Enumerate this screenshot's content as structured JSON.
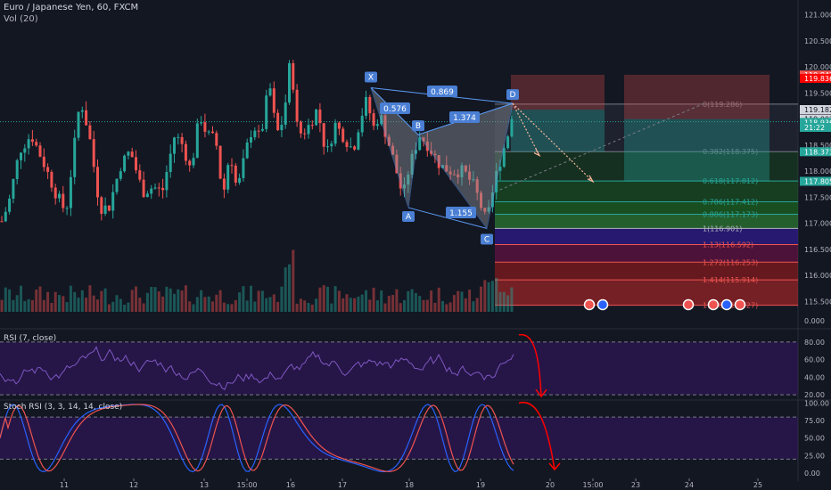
{
  "header": {
    "symbol_title": "Euro / Japanese Yen, 60, FXCM",
    "volume_label": "Vol (20)"
  },
  "rsi_panel": {
    "title": "RSI (7, close)"
  },
  "stoch_panel": {
    "title": "Stoch RSI (3, 3, 14, 14, close)"
  },
  "colors": {
    "background": "#131722",
    "up": "#26a69a",
    "down": "#ef5350",
    "pattern_fill": "#8a8f99",
    "pattern_line": "#5b9cf6",
    "rsi_line": "#7e57c2",
    "stoch_k": "#2962ff",
    "stoch_d": "#ef5350",
    "annotation_red": "#ff0000"
  },
  "chart_data": [
    {
      "type": "candlestick",
      "title": "Euro / Japanese Yen, 60, FXCM",
      "x_tick_labels": [
        "11",
        "12",
        "13",
        "15:00",
        "16",
        "17",
        "18",
        "19",
        "20",
        "15:00",
        "23",
        "24",
        "25"
      ],
      "y_tick_labels": [
        "121.000",
        "120.500",
        "120.000",
        "119.500",
        "119.000",
        "118.500",
        "118.000",
        "117.500",
        "117.000",
        "116.500",
        "116.000",
        "115.500"
      ],
      "ylim": [
        115.3,
        121.2
      ],
      "price_labels": [
        {
          "text": "119.847",
          "color": "#ef5350"
        },
        {
          "text": "119.836",
          "color": "#ff0000"
        },
        {
          "text": "119.182",
          "color": "#131722"
        },
        {
          "text": "119.002",
          "color": "#131722"
        },
        {
          "text": "118.936",
          "color": "#26a69a"
        },
        {
          "text": "21:22",
          "color": "#26a69a"
        },
        {
          "text": "118.373",
          "color": "#26a69a"
        },
        {
          "text": "117.805",
          "color": "#26a69a"
        }
      ],
      "harmonic_pattern": {
        "points": [
          {
            "label": "X",
            "price": 119.6
          },
          {
            "label": "A",
            "price": 117.3
          },
          {
            "label": "B",
            "price": 118.7
          },
          {
            "label": "C",
            "price": 116.9
          },
          {
            "label": "D",
            "price": 119.3
          }
        ],
        "ratios": [
          "0.869",
          "0.576",
          "1.374",
          "1.155"
        ]
      },
      "fib_levels": [
        {
          "ratio": 0,
          "price": 119.286,
          "label": "0(119.286)"
        },
        {
          "ratio": 0.382,
          "price": 118.375,
          "label": "0.382(118.375)"
        },
        {
          "ratio": 0.618,
          "price": 117.812,
          "label": "0.618(117.812)"
        },
        {
          "ratio": 0.786,
          "price": 117.412,
          "label": "0.786(117.412)"
        },
        {
          "ratio": 0.886,
          "price": 117.173,
          "label": "0.886(117.173)"
        },
        {
          "ratio": 1,
          "price": 116.901,
          "label": "1(116.901)"
        },
        {
          "ratio": 1.13,
          "price": 116.592,
          "label": "1.13(116.592)"
        },
        {
          "ratio": 1.272,
          "price": 116.253,
          "label": "1.272(116.253)"
        },
        {
          "ratio": 1.414,
          "price": 115.914,
          "label": "1.414(115.914)"
        },
        {
          "ratio": 1.618,
          "price": 115.427,
          "label": "1.618(115.427)"
        }
      ],
      "volume_axis_label": "0.000"
    },
    {
      "type": "line",
      "title": "RSI (7, close)",
      "y_tick_labels": [
        "80.00",
        "60.00",
        "40.00",
        "20.00"
      ],
      "ylim": [
        15,
        92
      ],
      "bands": [
        20,
        80
      ]
    },
    {
      "type": "line",
      "title": "Stoch RSI (3, 3, 14, 14, close)",
      "y_tick_labels": [
        "100.00",
        "75.00",
        "50.00",
        "25.00",
        "0.00"
      ],
      "ylim": [
        -5,
        103
      ],
      "bands": [
        20,
        80
      ]
    }
  ]
}
